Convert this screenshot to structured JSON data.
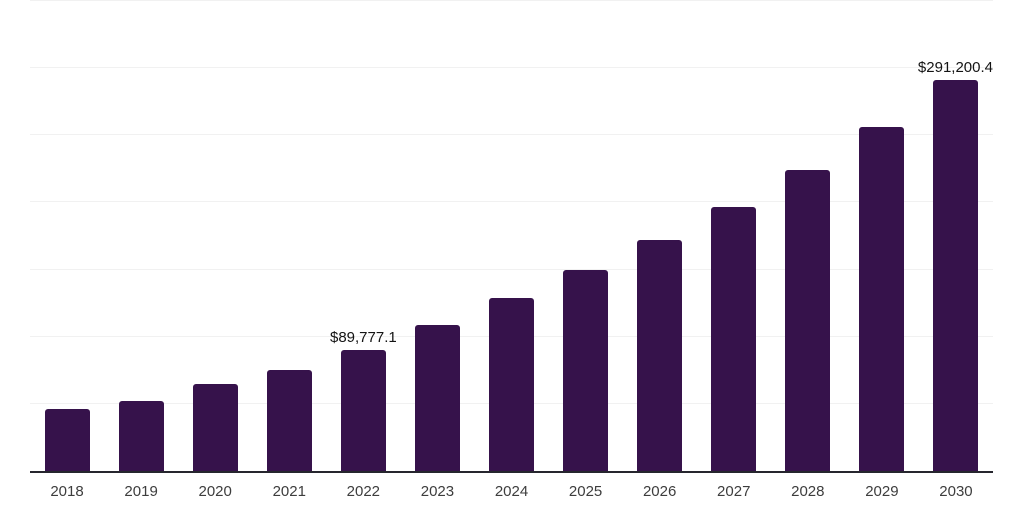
{
  "chart": {
    "background_color": "#ffffff",
    "bar_color": "#36124b",
    "axis_line_color": "#26262e",
    "gridline_color": "#f1f1f1",
    "tick_label_color": "#3d3d3d",
    "value_label_color": "#141414"
  },
  "chart_data": {
    "type": "bar",
    "title": "",
    "xlabel": "",
    "ylabel": "",
    "categories": [
      "2018",
      "2019",
      "2020",
      "2021",
      "2022",
      "2023",
      "2024",
      "2025",
      "2026",
      "2027",
      "2028",
      "2029",
      "2030"
    ],
    "values": [
      46300,
      52500,
      64900,
      75300,
      89777.1,
      108900,
      128700,
      149800,
      172400,
      197000,
      224300,
      256000,
      291200.4
    ],
    "labeled_points": [
      {
        "category": "2022",
        "text": "$89,777.1",
        "align": "center"
      },
      {
        "category": "2030",
        "text": "$291,200.4",
        "align": "right"
      }
    ],
    "ylim": [
      0,
      350000
    ],
    "gridline_step": 50000,
    "grid": "horizontal-only",
    "y_axis_tick_labels": "none",
    "legend": "none"
  }
}
